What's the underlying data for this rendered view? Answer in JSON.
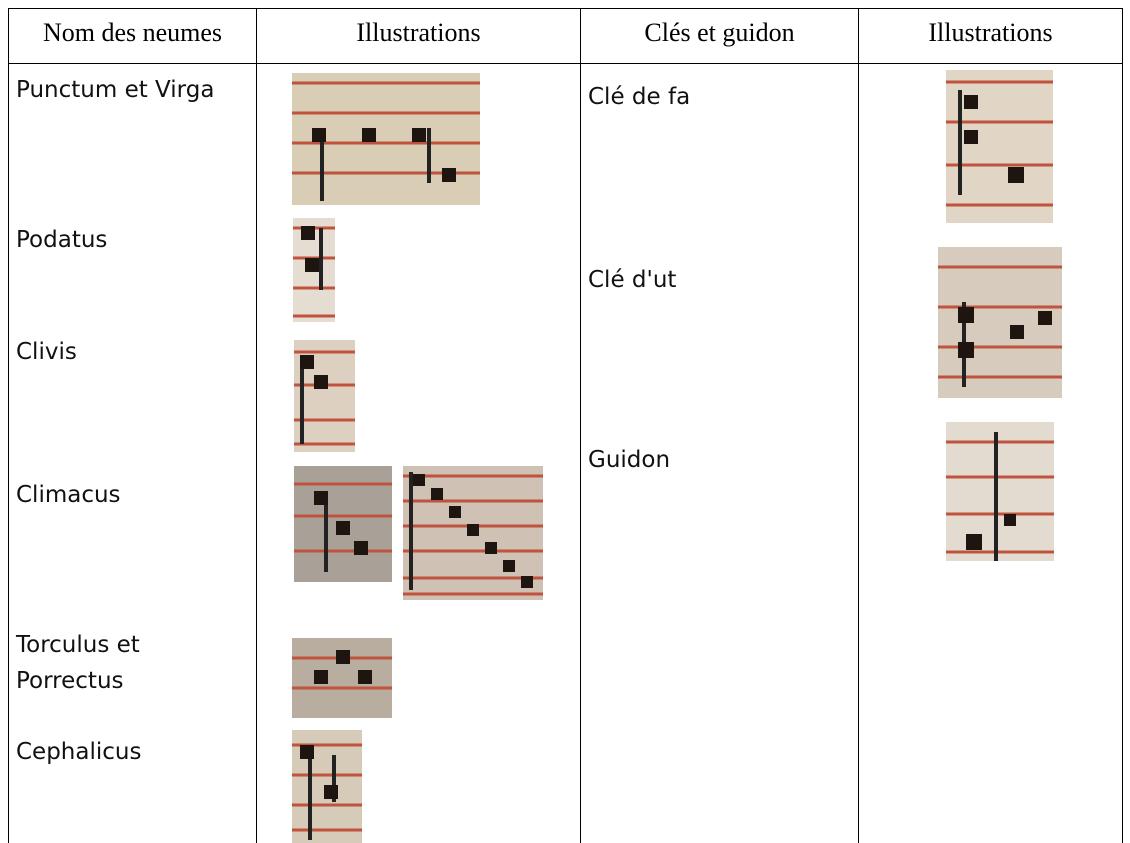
{
  "table": {
    "header": [
      "Nom des neumes",
      "Illustrations",
      "Clés et guidon",
      "Illustrations"
    ],
    "neumes": [
      "Punctum et Virga",
      "Podatus",
      "Clivis",
      "Climacus",
      "Torculus et Porrectus",
      "Cephalicus"
    ],
    "cles": [
      "Clé de fa",
      "Clé d'ut",
      "Guidon"
    ]
  }
}
